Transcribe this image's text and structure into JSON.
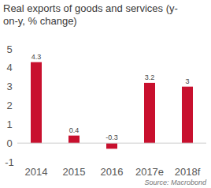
{
  "chart_data": {
    "type": "bar",
    "title": "Real exports of goods and services (y-on-y, % change)",
    "categories": [
      "2014",
      "2015",
      "2016",
      "2017e",
      "2018f"
    ],
    "values": [
      4.3,
      0.4,
      -0.3,
      3.2,
      3.0
    ],
    "color": "#c8102e",
    "ylim": [
      -1,
      5
    ],
    "yticks": [
      -1,
      0,
      1,
      2,
      3,
      4,
      5
    ],
    "data_labels": true,
    "grid": false,
    "source": "Source: Macrobond"
  }
}
